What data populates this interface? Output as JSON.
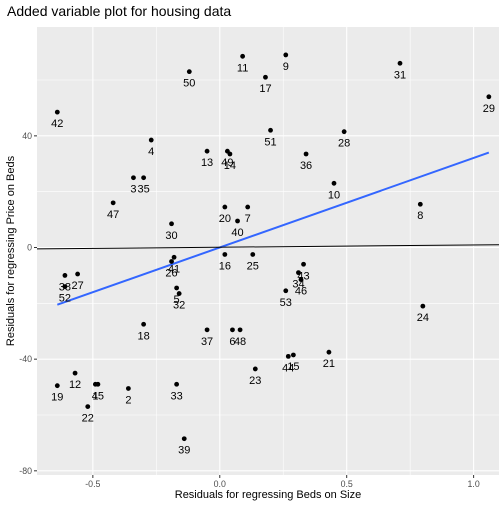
{
  "chart_data": {
    "type": "scatter",
    "title": "Added variable plot for housing data",
    "xlabel": "Residuals for regressing Beds on Size",
    "ylabel": "Residuals for regressing Price on Beds",
    "xlim": [
      -0.72,
      1.1
    ],
    "ylim": [
      -81.5,
      79
    ],
    "x_ticks": [
      -0.5,
      0.0,
      0.5,
      1.0
    ],
    "x_tick_labels": [
      "-0.5",
      "0.0",
      "0.5",
      "1.0"
    ],
    "y_ticks": [
      -80,
      -40,
      0,
      40
    ],
    "y_tick_labels": [
      "-80",
      "-40",
      "0",
      "40"
    ],
    "grid": true,
    "panel_background": "#ebebeb",
    "grid_color": "#ffffff",
    "point_color": "#000000",
    "points": [
      {
        "label": "1",
        "x": -0.49,
        "y": -49.0
      },
      {
        "label": "2",
        "x": -0.36,
        "y": -50.5
      },
      {
        "label": "3",
        "x": -0.34,
        "y": 25.0
      },
      {
        "label": "4",
        "x": -0.27,
        "y": 38.5
      },
      {
        "label": "5",
        "x": -0.17,
        "y": -14.5
      },
      {
        "label": "6",
        "x": 0.05,
        "y": -29.5
      },
      {
        "label": "7",
        "x": 0.11,
        "y": 14.5
      },
      {
        "label": "8",
        "x": 0.79,
        "y": 15.5
      },
      {
        "label": "9",
        "x": 0.26,
        "y": 69.0
      },
      {
        "label": "10",
        "x": 0.45,
        "y": 23.0
      },
      {
        "label": "11",
        "x": 0.09,
        "y": 68.5
      },
      {
        "label": "12",
        "x": -0.57,
        "y": -45.0
      },
      {
        "label": "13",
        "x": -0.05,
        "y": 34.5
      },
      {
        "label": "14",
        "x": 0.04,
        "y": 33.5
      },
      {
        "label": "15",
        "x": 0.29,
        "y": -38.5
      },
      {
        "label": "16",
        "x": 0.02,
        "y": -2.5
      },
      {
        "label": "17",
        "x": 0.18,
        "y": 61.0
      },
      {
        "label": "18",
        "x": -0.3,
        "y": -27.5
      },
      {
        "label": "19",
        "x": -0.64,
        "y": -49.5
      },
      {
        "label": "20",
        "x": 0.02,
        "y": 14.5
      },
      {
        "label": "21",
        "x": 0.43,
        "y": -37.5
      },
      {
        "label": "22",
        "x": -0.52,
        "y": -57.0
      },
      {
        "label": "23",
        "x": 0.14,
        "y": -43.5
      },
      {
        "label": "24",
        "x": 0.8,
        "y": -21.0
      },
      {
        "label": "25",
        "x": 0.13,
        "y": -2.5
      },
      {
        "label": "26",
        "x": -0.19,
        "y": -5.0
      },
      {
        "label": "27",
        "x": -0.56,
        "y": -9.5
      },
      {
        "label": "28",
        "x": 0.49,
        "y": 41.5
      },
      {
        "label": "29",
        "x": 1.06,
        "y": 54.0
      },
      {
        "label": "30",
        "x": -0.19,
        "y": 8.5
      },
      {
        "label": "31",
        "x": 0.71,
        "y": 66.0
      },
      {
        "label": "32",
        "x": -0.16,
        "y": -16.5
      },
      {
        "label": "33",
        "x": -0.17,
        "y": -49.0
      },
      {
        "label": "34",
        "x": 0.31,
        "y": -9.0
      },
      {
        "label": "35",
        "x": -0.3,
        "y": 25.0
      },
      {
        "label": "36",
        "x": 0.34,
        "y": 33.5
      },
      {
        "label": "37",
        "x": -0.05,
        "y": -29.5
      },
      {
        "label": "38",
        "x": -0.61,
        "y": -10.0
      },
      {
        "label": "39",
        "x": -0.14,
        "y": -68.5
      },
      {
        "label": "40",
        "x": 0.07,
        "y": 9.5
      },
      {
        "label": "41",
        "x": -0.18,
        "y": -3.5
      },
      {
        "label": "42",
        "x": -0.64,
        "y": 48.5
      },
      {
        "label": "43",
        "x": 0.33,
        "y": -6.0
      },
      {
        "label": "44",
        "x": 0.27,
        "y": -39.0
      },
      {
        "label": "45",
        "x": -0.48,
        "y": -49.0
      },
      {
        "label": "46",
        "x": 0.32,
        "y": -11.5
      },
      {
        "label": "47",
        "x": -0.42,
        "y": 16.0
      },
      {
        "label": "48",
        "x": 0.08,
        "y": -29.5
      },
      {
        "label": "49",
        "x": 0.03,
        "y": 34.5
      },
      {
        "label": "50",
        "x": -0.12,
        "y": 63.0
      },
      {
        "label": "51",
        "x": 0.2,
        "y": 42.0
      },
      {
        "label": "52",
        "x": -0.61,
        "y": -14.0
      },
      {
        "label": "53",
        "x": 0.26,
        "y": -15.5
      }
    ],
    "reference_lines": [
      {
        "name": "fit",
        "color": "#3366ff",
        "x": [
          -0.64,
          1.06
        ],
        "y": [
          -20.5,
          34.0
        ]
      },
      {
        "name": "zero-slope",
        "color": "#000000",
        "x": [
          -0.72,
          1.1
        ],
        "y": [
          -0.5,
          1.0
        ]
      }
    ]
  }
}
